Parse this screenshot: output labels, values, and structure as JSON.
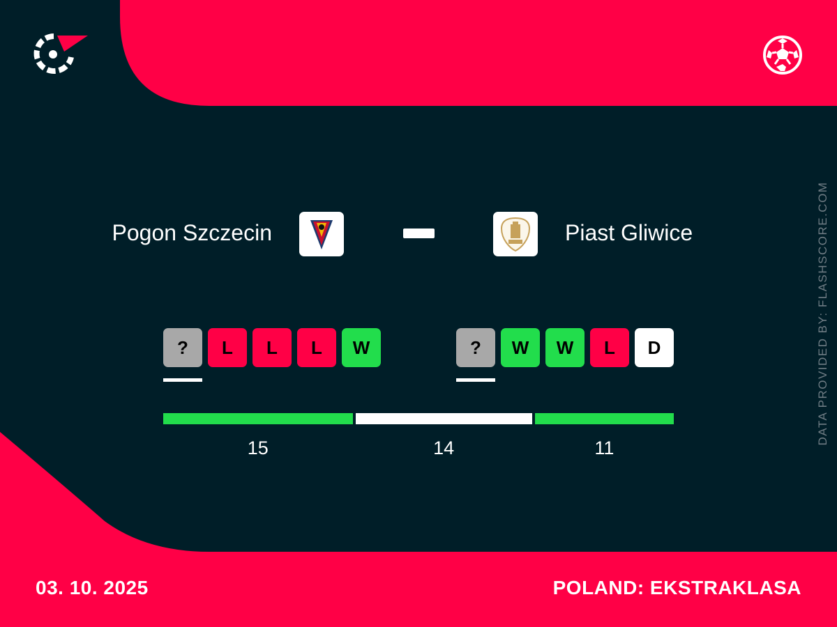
{
  "colors": {
    "background": "#001e28",
    "accent": "#ff0046",
    "win": "#22dd4c",
    "loss": "#ff0046",
    "draw": "#ffffff",
    "upcoming": "#a8a8a8"
  },
  "brand": {
    "logo_icon": "flashscore-logo-icon",
    "sport_icon": "soccer-ball-icon"
  },
  "match": {
    "home_team": "Pogon Szczecin",
    "away_team": "Piast Gliwice",
    "separator": "–"
  },
  "form": {
    "home": [
      "?",
      "L",
      "L",
      "L",
      "W"
    ],
    "away": [
      "?",
      "W",
      "W",
      "L",
      "D"
    ]
  },
  "head_to_head": {
    "home_wins": 15,
    "draws": 14,
    "away_wins": 11
  },
  "attribution": "DATA PROVIDED BY: FLASHSCORE.COM",
  "footer": {
    "date": "03. 10. 2025",
    "league": "POLAND: EKSTRAKLASA"
  }
}
